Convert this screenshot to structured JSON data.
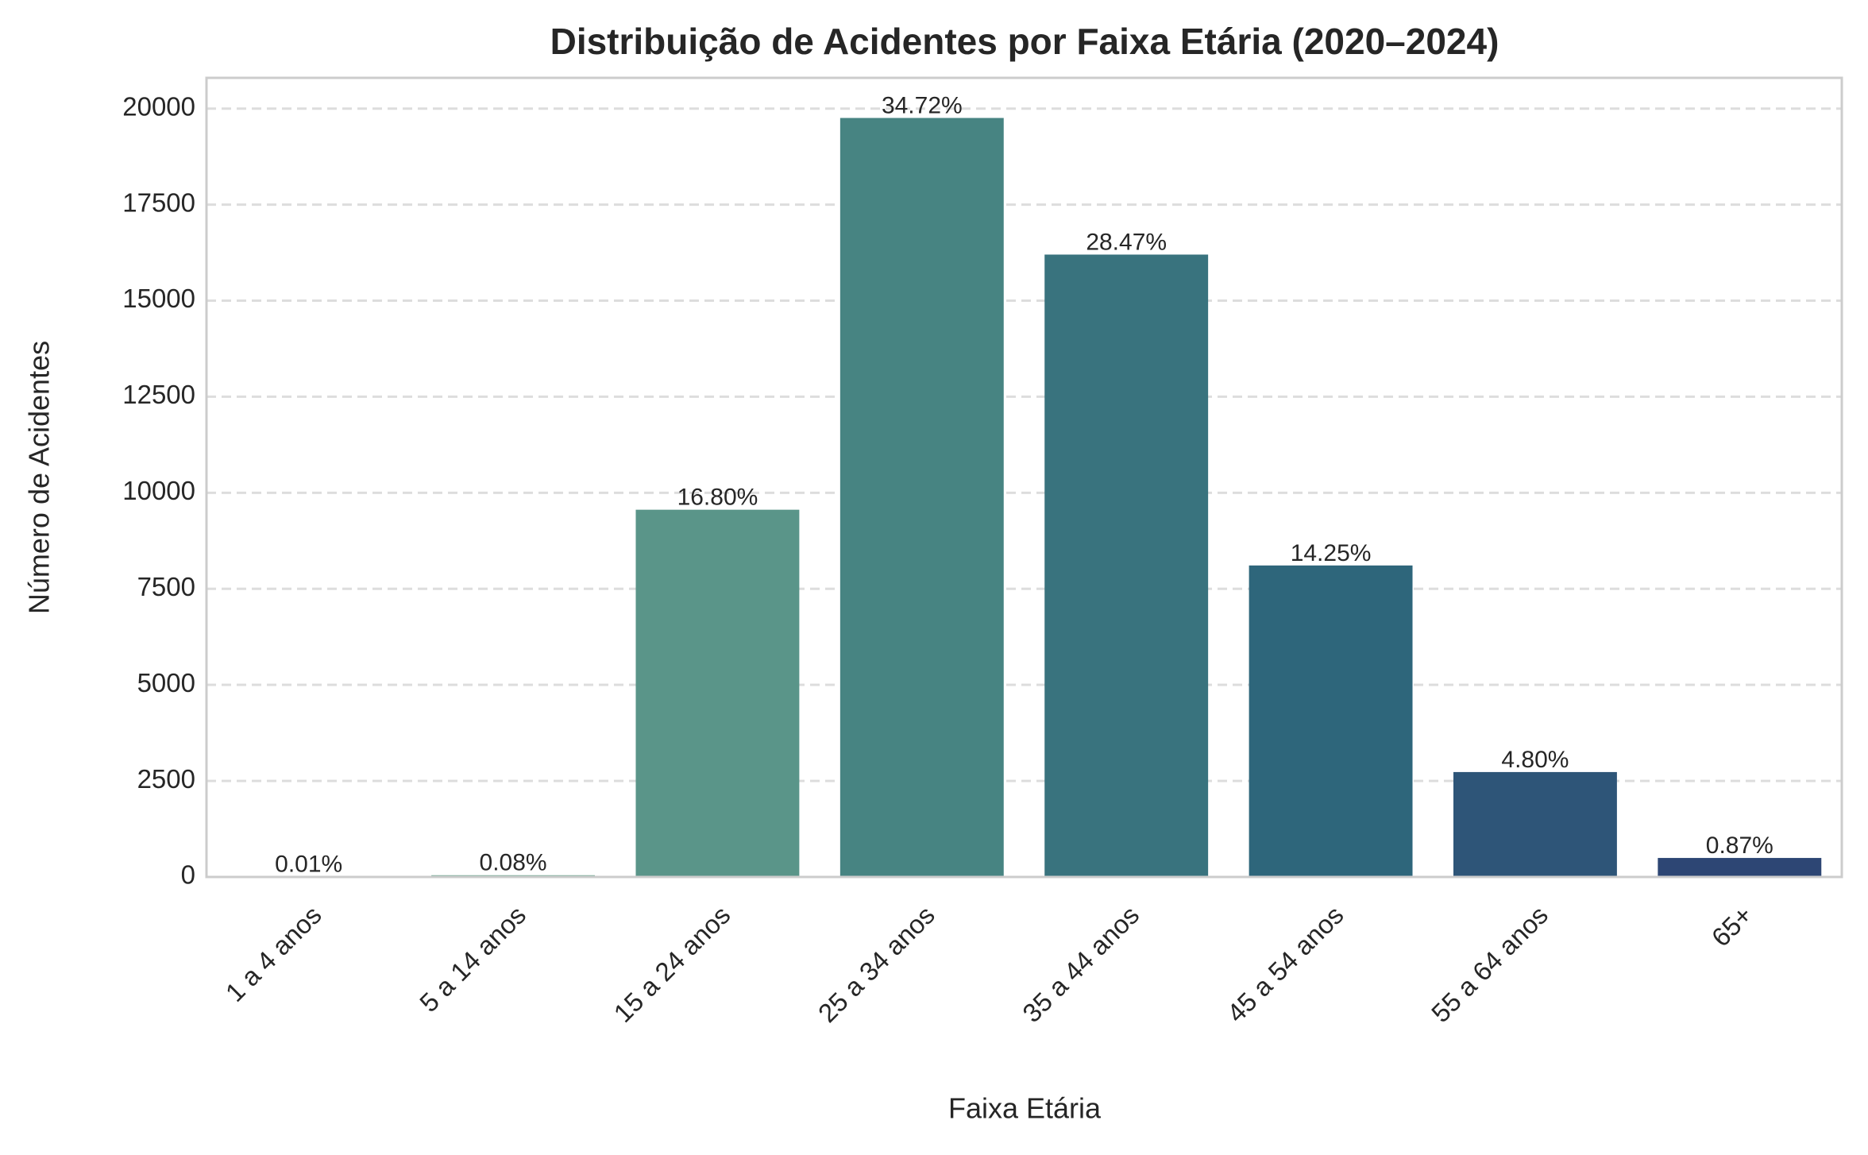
{
  "chart_data": {
    "type": "bar",
    "title": "Distribuição de Acidentes por Faixa Etária (2020–2024)",
    "x_label": "Faixa Etária",
    "y_label": "Número de Acidentes",
    "categories": [
      "1 a 4 anos",
      "5 a 14 anos",
      "15 a 24 anos",
      "25 a 34 anos",
      "35 a 44 anos",
      "45 a 54 anos",
      "55 a 64 anos",
      "65+"
    ],
    "values": [
      6,
      46,
      9559,
      19756,
      16200,
      8108,
      2731,
      495
    ],
    "annotations": [
      "0.01%",
      "0.08%",
      "16.80%",
      "34.72%",
      "28.47%",
      "14.25%",
      "4.80%",
      "0.87%"
    ],
    "colors": [
      "#7bb595",
      "#6aa690",
      "#5a9589",
      "#478482",
      "#39737e",
      "#2e667b",
      "#2e5578",
      "#2d4674"
    ],
    "ylim": [
      0,
      20800
    ],
    "yticks": [
      0,
      2500,
      5000,
      7500,
      10000,
      12500,
      15000,
      17500,
      20000
    ],
    "grid": true
  }
}
